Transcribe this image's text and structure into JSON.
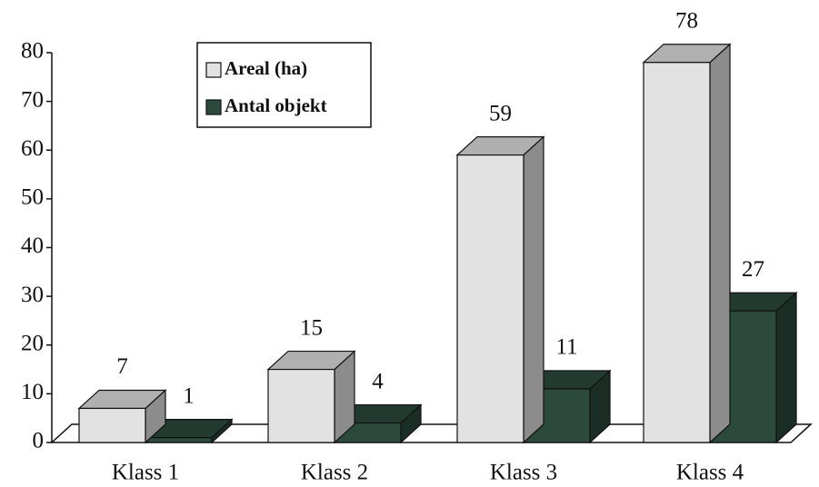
{
  "chart_data": {
    "type": "bar3d",
    "categories": [
      "Klass 1",
      "Klass 2",
      "Klass 3",
      "Klass 4"
    ],
    "series": [
      {
        "name": "Areal (ha)",
        "color": "#e2e2e2",
        "values": [
          7,
          15,
          59,
          78
        ]
      },
      {
        "name": "Antal objekt",
        "color": "#2b4a3c",
        "values": [
          1,
          4,
          11,
          27
        ]
      }
    ],
    "ylim": [
      0,
      80
    ],
    "yticks": [
      0,
      10,
      20,
      30,
      40,
      50,
      60,
      70,
      80
    ],
    "legend": "upper left"
  }
}
